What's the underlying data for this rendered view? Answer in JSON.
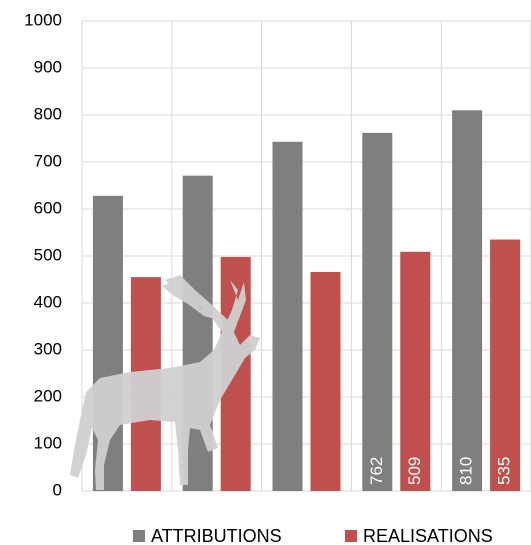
{
  "chart_data": {
    "type": "bar",
    "categories": [
      null,
      null,
      null,
      null,
      null
    ],
    "series": [
      {
        "name": "ATTRIBUTIONS",
        "color": "#7f7f7f",
        "values": [
          628,
          671,
          743,
          762,
          810
        ],
        "show_value_labels": [
          false,
          false,
          false,
          true,
          true
        ]
      },
      {
        "name": "REALISATIONS",
        "color": "#c0504d",
        "values": [
          455,
          498,
          466,
          509,
          535
        ],
        "show_value_labels": [
          false,
          false,
          false,
          true,
          true
        ]
      }
    ],
    "ylim": [
      0,
      1000
    ],
    "yticks": [
      0,
      100,
      200,
      300,
      400,
      500,
      600,
      700,
      800,
      900,
      1000
    ],
    "grid": true,
    "legend": "bottom"
  }
}
